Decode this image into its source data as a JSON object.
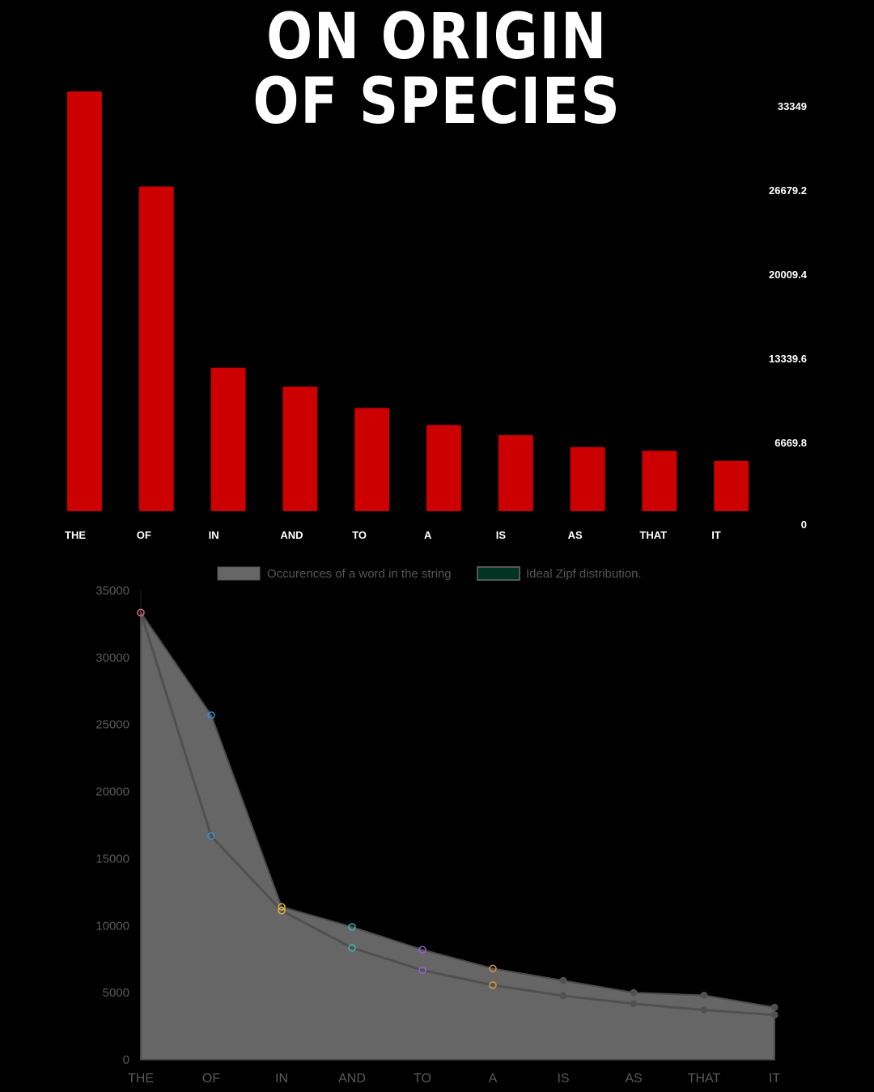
{
  "header": {
    "title_line1": "ON ORIGIN",
    "title_line2": "OF SPECIES"
  },
  "chart_data": [
    {
      "type": "bar",
      "categories": [
        "THE",
        "OF",
        "IN",
        "AND",
        "TO",
        "A",
        "IS",
        "AS",
        "THAT",
        "IT"
      ],
      "values": [
        33349,
        25800,
        11400,
        9900,
        8200,
        6850,
        6050,
        5100,
        4800,
        4000
      ],
      "ylim": [
        0,
        33349
      ],
      "yticks": [
        "33349",
        "26679.2",
        "20009.4",
        "13339.6",
        "6669.8",
        "0"
      ],
      "bar_color": "#cc0000",
      "axis_side": "right",
      "grid": false
    },
    {
      "type": "area",
      "categories": [
        "THE",
        "OF",
        "IN",
        "AND",
        "TO",
        "A",
        "IS",
        "AS",
        "THAT",
        "IT"
      ],
      "series": [
        {
          "name": "Occurences of a word in the string",
          "values": [
            33349,
            25700,
            11400,
            9900,
            8200,
            6800,
            5900,
            5000,
            4800,
            3900
          ],
          "fill": "#666666",
          "stroke": "#4a4a4a"
        },
        {
          "name": "Ideal Zipf distribution.",
          "values": [
            33349,
            16675,
            11116,
            8337,
            6670,
            5558,
            4764,
            4169,
            3705,
            3335
          ],
          "fill": "#003322",
          "stroke": "#505050"
        }
      ],
      "marker_colors": [
        "#d0607a",
        "#3a8fc8",
        "#e0b040",
        "#40b0b8",
        "#9060d0",
        "#e09040",
        "#555555",
        "#555555",
        "#555555",
        "#555555"
      ],
      "ylim": [
        0,
        35000
      ],
      "yticks": [
        "35000",
        "30000",
        "25000",
        "20000",
        "15000",
        "10000",
        "5000",
        "0"
      ],
      "legend_position": "top",
      "grid": false
    }
  ]
}
